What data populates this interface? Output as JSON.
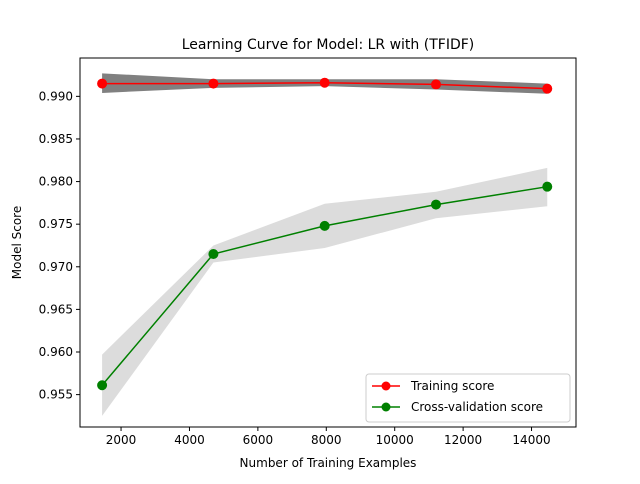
{
  "chart_data": {
    "type": "line",
    "title": "Learning Curve for Model: LR with (TFIDF)",
    "xlabel": "Number of Training Examples",
    "ylabel": "Model Score",
    "xlim": [
      800,
      15300
    ],
    "ylim": [
      0.9512,
      0.9945
    ],
    "xticks": [
      2000,
      4000,
      6000,
      8000,
      10000,
      12000,
      14000
    ],
    "xtick_labels": [
      "2000",
      "4000",
      "6000",
      "8000",
      "10000",
      "12000",
      "14000"
    ],
    "yticks": [
      0.955,
      0.96,
      0.965,
      0.97,
      0.975,
      0.98,
      0.985,
      0.99
    ],
    "ytick_labels": [
      "0.955",
      "0.960",
      "0.965",
      "0.970",
      "0.975",
      "0.980",
      "0.985",
      "0.990"
    ],
    "grid": false,
    "legend_position": "lower-right",
    "x": [
      1446,
      4700,
      7953,
      11207,
      14460
    ],
    "series": [
      {
        "name": "Training score",
        "color": "#ff0000",
        "marker": "circle",
        "values": [
          0.9915,
          0.9915,
          0.9916,
          0.9914,
          0.9909
        ],
        "band_lower": [
          0.9904,
          0.991,
          0.9912,
          0.9908,
          0.9903
        ],
        "band_upper": [
          0.9927,
          0.992,
          0.992,
          0.992,
          0.9915
        ],
        "band_color": "#808080"
      },
      {
        "name": "Cross-validation score",
        "color": "#008000",
        "marker": "circle",
        "values": [
          0.9561,
          0.9715,
          0.9748,
          0.9773,
          0.9794
        ],
        "band_lower": [
          0.9525,
          0.9705,
          0.9722,
          0.9757,
          0.9771
        ],
        "band_upper": [
          0.9597,
          0.9725,
          0.9774,
          0.9788,
          0.9816
        ],
        "band_color": "#dcdcdc"
      }
    ]
  }
}
